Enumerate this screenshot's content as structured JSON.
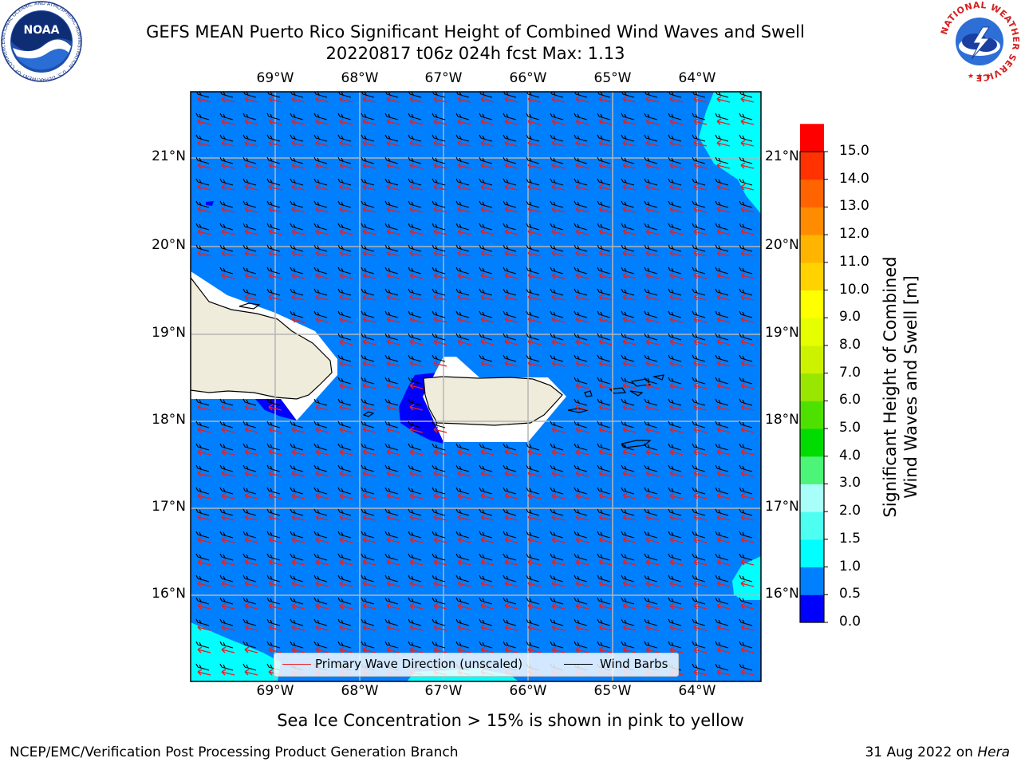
{
  "title": {
    "line1": "GEFS MEAN Puerto Rico Significant Height of Combined Wind Waves and Swell",
    "line2": "20220817 t06z 024h fcst   Max: 1.13"
  },
  "map": {
    "lon_ticks": [
      "69°W",
      "68°W",
      "67°W",
      "66°W",
      "65°W",
      "64°W"
    ],
    "lat_ticks": [
      "21°N",
      "20°N",
      "19°N",
      "18°N",
      "17°N",
      "16°N"
    ],
    "ocean_color": "#007ffe",
    "land_color": "#efecdc",
    "gridline_color": "#b5b5b5"
  },
  "legend": {
    "wave_label": "Primary Wave Direction (unscaled)",
    "barb_label": "Wind Barbs",
    "wave_color": "#e82020",
    "barb_color": "#000000"
  },
  "colorbar": {
    "label_line1": "Significant Height of Combined",
    "label_line2": "Wind Waves and Swell [m]",
    "ticks": [
      "15.0",
      "14.0",
      "13.0",
      "12.0",
      "11.0",
      "10.0",
      "9.0",
      "8.0",
      "7.0",
      "6.0",
      "5.0",
      "4.0",
      "3.0",
      "2.0",
      "1.5",
      "1.0",
      "0.5",
      "0.0"
    ],
    "colors": [
      "#0000ff",
      "#007fff",
      "#00ffff",
      "#4dfff0",
      "#a8fff9",
      "#4cf577",
      "#00db00",
      "#4ee100",
      "#99e600",
      "#ccf200",
      "#e6ff00",
      "#ffff00",
      "#ffd200",
      "#ffb400",
      "#ff8c00",
      "#ff6400",
      "#ff3200",
      "#ff0000"
    ]
  },
  "footer": {
    "sea_ice": "Sea Ice Concentration > 15% is shown in pink to yellow",
    "left": "NCEP/EMC/Verification Post Processing Product Generation Branch",
    "date": "31 Aug 2022 on",
    "host": "Hera"
  },
  "logos": {
    "noaa": "NOAA",
    "noaa_ring": "NATIONAL OCEANIC AND ATMOSPHERIC ADMINISTRATION · U.S. DEPARTMENT OF COMMERCE",
    "nws_ring": "NATIONAL WEATHER SERVICE"
  }
}
